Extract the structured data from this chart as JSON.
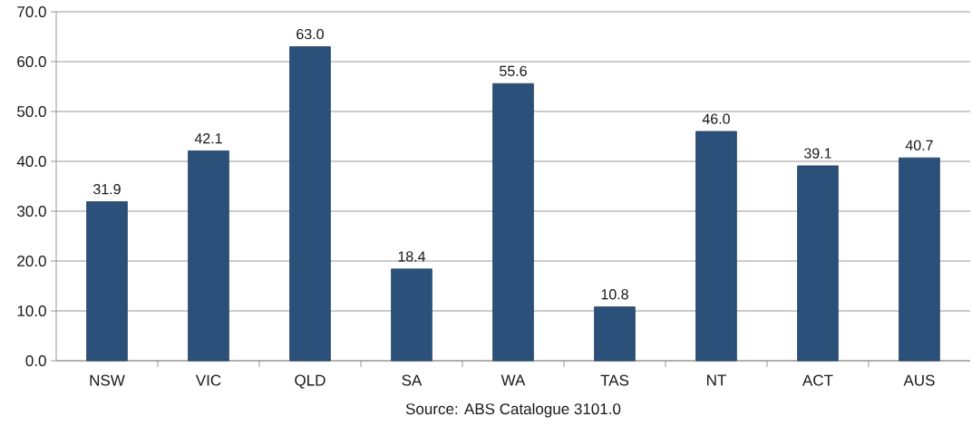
{
  "chart_data": {
    "type": "bar",
    "categories": [
      "NSW",
      "VIC",
      "QLD",
      "SA",
      "WA",
      "TAS",
      "NT",
      "ACT",
      "AUS"
    ],
    "values": [
      31.9,
      42.1,
      63.0,
      18.4,
      55.6,
      10.8,
      46.0,
      39.1,
      40.7
    ],
    "value_labels": [
      "31.9",
      "42.1",
      "63.0",
      "18.4",
      "55.6",
      "10.8",
      "46.0",
      "39.1",
      "40.7"
    ],
    "color": "#2b5079",
    "ylim": [
      0,
      70
    ],
    "yticks": [
      {
        "value": 0,
        "label": "0.0"
      },
      {
        "value": 10,
        "label": "10.0"
      },
      {
        "value": 20,
        "label": "20.0"
      },
      {
        "value": 30,
        "label": "30.0"
      },
      {
        "value": 40,
        "label": "40.0"
      },
      {
        "value": 50,
        "label": "50.0"
      },
      {
        "value": 60,
        "label": "60.0"
      },
      {
        "value": 70,
        "label": "70.0"
      }
    ],
    "grid": "y",
    "annotations": [
      "Source: ABS Catalogue 3101.0"
    ]
  }
}
